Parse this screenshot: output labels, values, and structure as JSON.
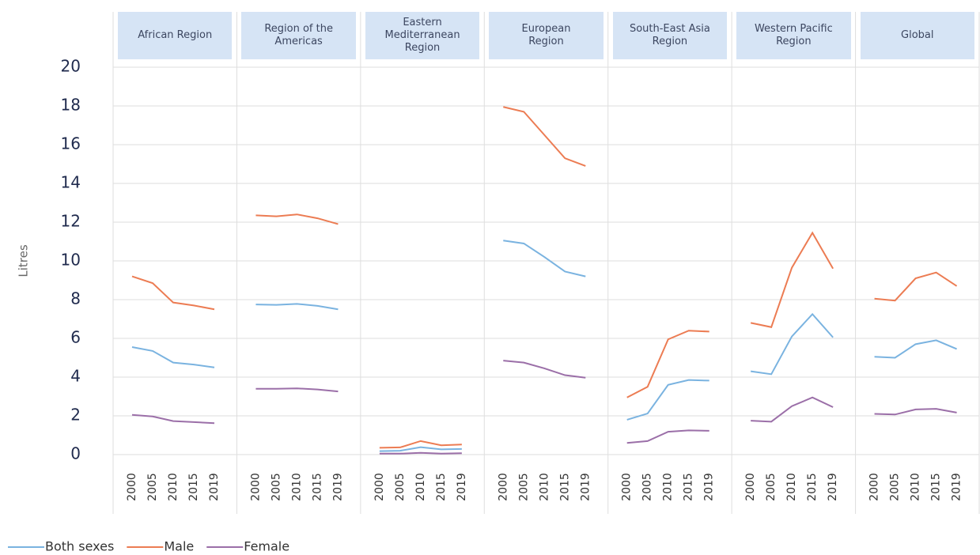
{
  "chart_data": {
    "type": "line",
    "ylabel": "Litres",
    "ylim": [
      0,
      20
    ],
    "yticks": [
      0,
      2,
      4,
      6,
      8,
      10,
      12,
      14,
      16,
      18,
      20
    ],
    "grid": true,
    "categories": [
      "2000",
      "2005",
      "2010",
      "2015",
      "2019"
    ],
    "panels": [
      "African Region",
      "Region of the Americas",
      "Eastern Mediterranean Region",
      "European Region",
      "South-East Asia Region",
      "Western Pacific Region",
      "Global"
    ],
    "series": [
      {
        "name": "Both sexes",
        "color": "#7ab3e0",
        "values": [
          [
            5.55,
            5.35,
            4.75,
            4.65,
            4.5
          ],
          [
            7.75,
            7.73,
            7.78,
            7.68,
            7.5
          ],
          [
            0.18,
            0.2,
            0.38,
            0.27,
            0.29
          ],
          [
            11.05,
            10.9,
            10.2,
            9.45,
            9.2
          ],
          [
            1.8,
            2.12,
            3.6,
            3.85,
            3.82
          ],
          [
            4.3,
            4.15,
            6.1,
            7.25,
            6.05
          ],
          [
            5.05,
            5.0,
            5.7,
            5.9,
            5.45
          ]
        ]
      },
      {
        "name": "Male",
        "color": "#ec7c53",
        "values": [
          [
            9.2,
            8.85,
            7.85,
            7.7,
            7.5
          ],
          [
            12.35,
            12.3,
            12.4,
            12.2,
            11.9
          ],
          [
            0.35,
            0.37,
            0.7,
            0.48,
            0.52
          ],
          [
            17.95,
            17.7,
            16.5,
            15.3,
            14.9
          ],
          [
            2.95,
            3.5,
            5.95,
            6.4,
            6.35
          ],
          [
            6.8,
            6.58,
            9.65,
            11.45,
            9.6
          ],
          [
            8.05,
            7.95,
            9.1,
            9.4,
            8.7
          ]
        ]
      },
      {
        "name": "Female",
        "color": "#9b6fa8",
        "values": [
          [
            2.05,
            1.97,
            1.73,
            1.68,
            1.62
          ],
          [
            3.4,
            3.4,
            3.42,
            3.36,
            3.26
          ],
          [
            0.05,
            0.05,
            0.09,
            0.05,
            0.07
          ],
          [
            4.85,
            4.75,
            4.45,
            4.1,
            3.97
          ],
          [
            0.6,
            0.7,
            1.18,
            1.25,
            1.23
          ],
          [
            1.75,
            1.7,
            2.5,
            2.95,
            2.45
          ],
          [
            2.1,
            2.07,
            2.33,
            2.36,
            2.17
          ]
        ]
      }
    ]
  }
}
